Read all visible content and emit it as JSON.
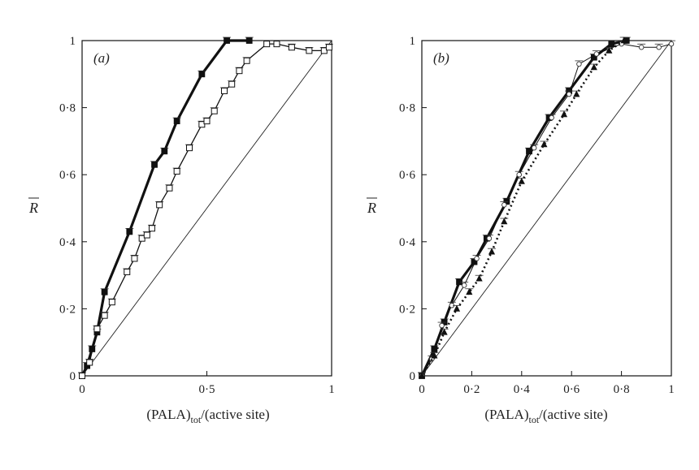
{
  "chart_data": [
    {
      "type": "line",
      "panel_label": "(a)",
      "xlabel_main": "(PALA)",
      "xlabel_sub": "tot",
      "xlabel_rest": "/(active site)",
      "ylabel": "R",
      "xlim": [
        0,
        1
      ],
      "ylim": [
        0,
        1
      ],
      "xticks": [
        "0",
        "0·5",
        "1"
      ],
      "yticks": [
        "0",
        "0·2",
        "0·4",
        "0·6",
        "0·8",
        "1"
      ],
      "grid": false,
      "series": [
        {
          "marker": "filled-square",
          "line": "thick-solid",
          "x": [
            0.0,
            0.02,
            0.04,
            0.06,
            0.09,
            0.19,
            0.29,
            0.33,
            0.38,
            0.48,
            0.58,
            0.67
          ],
          "y": [
            0.0,
            0.03,
            0.08,
            0.13,
            0.25,
            0.43,
            0.63,
            0.67,
            0.76,
            0.9,
            1.0,
            1.0
          ]
        },
        {
          "marker": "open-square",
          "line": "solid",
          "x": [
            0.0,
            0.03,
            0.06,
            0.09,
            0.12,
            0.18,
            0.21,
            0.24,
            0.26,
            0.28,
            0.31,
            0.35,
            0.38,
            0.43,
            0.48,
            0.5,
            0.53,
            0.57,
            0.6,
            0.63,
            0.66,
            0.74,
            0.78,
            0.84,
            0.91,
            0.97,
            0.99
          ],
          "y": [
            0.0,
            0.04,
            0.14,
            0.18,
            0.22,
            0.31,
            0.35,
            0.41,
            0.42,
            0.44,
            0.51,
            0.56,
            0.61,
            0.68,
            0.75,
            0.76,
            0.79,
            0.85,
            0.87,
            0.91,
            0.94,
            0.99,
            0.99,
            0.98,
            0.97,
            0.97,
            0.98
          ]
        }
      ],
      "reference_line": {
        "from": [
          0,
          0
        ],
        "to": [
          1,
          1
        ]
      }
    },
    {
      "type": "line",
      "panel_label": "(b)",
      "xlabel_main": "(PALA)",
      "xlabel_sub": "tot",
      "xlabel_rest": "/(active site)",
      "ylabel": "R",
      "xlim": [
        0,
        1
      ],
      "ylim": [
        0,
        1
      ],
      "xticks": [
        "0",
        "0·2",
        "0·4",
        "0·6",
        "0·8",
        "1"
      ],
      "yticks": [
        "0",
        "0·2",
        "0·4",
        "0·6",
        "0·8",
        "1"
      ],
      "grid": false,
      "series": [
        {
          "marker": "filled-square",
          "line": "thick-solid",
          "x": [
            0.0,
            0.05,
            0.09,
            0.15,
            0.21,
            0.26,
            0.34,
            0.43,
            0.51,
            0.59,
            0.69,
            0.76,
            0.82
          ],
          "y": [
            0.0,
            0.08,
            0.16,
            0.28,
            0.34,
            0.41,
            0.52,
            0.67,
            0.77,
            0.85,
            0.95,
            0.99,
            1.0
          ]
        },
        {
          "marker": "open-circle",
          "line": "thin-solid",
          "x": [
            0.0,
            0.04,
            0.08,
            0.12,
            0.17,
            0.22,
            0.27,
            0.33,
            0.39,
            0.45,
            0.52,
            0.59,
            0.63,
            0.7,
            0.8,
            0.88,
            0.95,
            1.0
          ],
          "y": [
            0.0,
            0.05,
            0.15,
            0.21,
            0.27,
            0.35,
            0.41,
            0.51,
            0.6,
            0.68,
            0.77,
            0.84,
            0.93,
            0.96,
            0.99,
            0.98,
            0.98,
            0.99
          ]
        },
        {
          "marker": "filled-triangle",
          "line": "dotted",
          "x": [
            0.0,
            0.05,
            0.09,
            0.14,
            0.19,
            0.23,
            0.28,
            0.33,
            0.4,
            0.49,
            0.57,
            0.62,
            0.69,
            0.75,
            0.81
          ],
          "y": [
            0.0,
            0.06,
            0.13,
            0.2,
            0.25,
            0.29,
            0.37,
            0.46,
            0.58,
            0.69,
            0.78,
            0.84,
            0.92,
            0.97,
            1.0
          ]
        }
      ],
      "reference_line": {
        "from": [
          0,
          0
        ],
        "to": [
          1,
          1
        ]
      }
    }
  ]
}
